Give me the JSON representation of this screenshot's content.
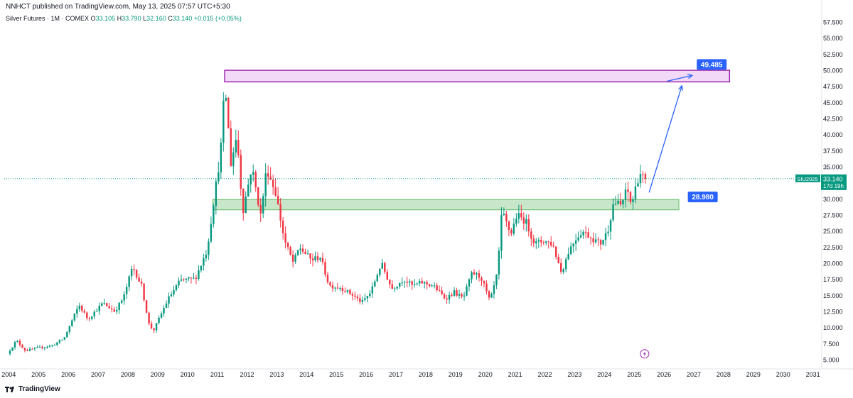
{
  "header": {
    "publisher_line": "NNHCT published on TradingView.com, May 13, 2025 07:57 UTC+5:30",
    "symbol_desc": "Silver Futures · 1M · COMEX",
    "open_label": "O",
    "open": "33.105",
    "high_label": "H",
    "high": "33.790",
    "low_label": "L",
    "low": "32.160",
    "close_label": "C",
    "close": "33.140",
    "change": "+0.015 (+0.05%)"
  },
  "footer": {
    "brand": "TradingView"
  },
  "colors": {
    "up": "#089981",
    "down": "#f23645",
    "resistance_fill": "#f3d9f8",
    "resistance_stroke": "#9c27b0",
    "support_fill": "#c8e6c9",
    "support_stroke": "#66bb6a",
    "label_blue": "#2962ff",
    "price_tag": "#089981"
  },
  "chart_data": {
    "type": "candlestick",
    "title": "Silver Futures · 1M · COMEX",
    "y_ticks": [
      "5.000",
      "7.500",
      "10.000",
      "12.500",
      "15.000",
      "17.500",
      "20.000",
      "22.500",
      "25.000",
      "27.500",
      "30.000",
      "32.500",
      "35.000",
      "37.500",
      "40.000",
      "42.500",
      "45.000",
      "47.500",
      "50.000",
      "52.500",
      "55.000",
      "57.500"
    ],
    "x_ticks": [
      "2004",
      "2005",
      "2006",
      "2007",
      "2008",
      "2009",
      "2010",
      "2011",
      "2012",
      "2013",
      "2014",
      "2015",
      "2016",
      "2017",
      "2018",
      "2019",
      "2020",
      "2021",
      "2022",
      "2023",
      "2024",
      "2025",
      "2026",
      "2027",
      "2028",
      "2029",
      "2030",
      "2031"
    ],
    "ylim": [
      4,
      58.5
    ],
    "xlim": [
      2003.85,
      2031.2
    ],
    "grid": false,
    "price_path": [
      [
        2004.0,
        5.9
      ],
      [
        2004.3,
        8.0
      ],
      [
        2004.6,
        6.4
      ],
      [
        2005.0,
        6.8
      ],
      [
        2005.5,
        7.2
      ],
      [
        2005.9,
        8.3
      ],
      [
        2006.4,
        13.5
      ],
      [
        2006.7,
        11.3
      ],
      [
        2007.2,
        13.8
      ],
      [
        2007.6,
        12.5
      ],
      [
        2007.9,
        14.7
      ],
      [
        2008.2,
        19.5
      ],
      [
        2008.5,
        16.5
      ],
      [
        2008.75,
        10.5
      ],
      [
        2008.9,
        9.5
      ],
      [
        2009.4,
        14.5
      ],
      [
        2009.8,
        17.3
      ],
      [
        2010.3,
        17.6
      ],
      [
        2010.7,
        22.0
      ],
      [
        2010.95,
        30.6
      ],
      [
        2011.15,
        37.0
      ],
      [
        2011.3,
        48.0
      ],
      [
        2011.5,
        35.5
      ],
      [
        2011.7,
        40.0
      ],
      [
        2011.9,
        28.0
      ],
      [
        2012.2,
        35.0
      ],
      [
        2012.5,
        27.5
      ],
      [
        2012.7,
        34.8
      ],
      [
        2013.0,
        31.0
      ],
      [
        2013.3,
        23.5
      ],
      [
        2013.6,
        20.0
      ],
      [
        2013.8,
        22.5
      ],
      [
        2014.2,
        20.5
      ],
      [
        2014.5,
        21.0
      ],
      [
        2014.8,
        16.5
      ],
      [
        2015.2,
        16.2
      ],
      [
        2015.6,
        15.0
      ],
      [
        2015.9,
        13.9
      ],
      [
        2016.2,
        15.5
      ],
      [
        2016.55,
        20.0
      ],
      [
        2016.9,
        16.0
      ],
      [
        2017.3,
        17.5
      ],
      [
        2017.6,
        16.5
      ],
      [
        2017.9,
        17.0
      ],
      [
        2018.3,
        16.5
      ],
      [
        2018.7,
        14.5
      ],
      [
        2019.0,
        15.5
      ],
      [
        2019.3,
        14.5
      ],
      [
        2019.6,
        18.5
      ],
      [
        2019.9,
        17.8
      ],
      [
        2020.2,
        14.0
      ],
      [
        2020.45,
        18.5
      ],
      [
        2020.6,
        28.0
      ],
      [
        2020.9,
        24.5
      ],
      [
        2021.1,
        27.5
      ],
      [
        2021.4,
        26.5
      ],
      [
        2021.7,
        23.0
      ],
      [
        2022.0,
        23.5
      ],
      [
        2022.3,
        23.0
      ],
      [
        2022.6,
        18.5
      ],
      [
        2022.85,
        22.0
      ],
      [
        2023.1,
        24.0
      ],
      [
        2023.3,
        25.0
      ],
      [
        2023.6,
        24.0
      ],
      [
        2023.9,
        23.0
      ],
      [
        2024.15,
        25.0
      ],
      [
        2024.35,
        29.5
      ],
      [
        2024.6,
        29.0
      ],
      [
        2024.8,
        31.5
      ],
      [
        2024.95,
        29.0
      ],
      [
        2025.15,
        33.0
      ],
      [
        2025.25,
        34.0
      ],
      [
        2025.37,
        33.14
      ]
    ],
    "last_price": "33.140",
    "countdown": "17d 19h",
    "symbol_tag": "SIU2025",
    "annotations": [
      {
        "type": "rect",
        "label": "resistance",
        "x": [
          2011.25,
          2028.2
        ],
        "y": [
          48.2,
          50.0
        ]
      },
      {
        "type": "rect",
        "label": "support",
        "x": [
          2010.85,
          2026.5
        ],
        "y": [
          28.3,
          29.9
        ]
      },
      {
        "type": "arrow",
        "from": [
          2025.5,
          31.0
        ],
        "to": [
          2026.6,
          47.6
        ]
      },
      {
        "type": "arrow",
        "from": [
          2026.1,
          48.3
        ],
        "to": [
          2026.95,
          49.2
        ]
      }
    ],
    "price_labels": [
      {
        "text": "49.485",
        "x": 2027.1,
        "y": 50.9
      },
      {
        "text": "28.980",
        "x": 2026.8,
        "y": 30.3
      }
    ]
  }
}
